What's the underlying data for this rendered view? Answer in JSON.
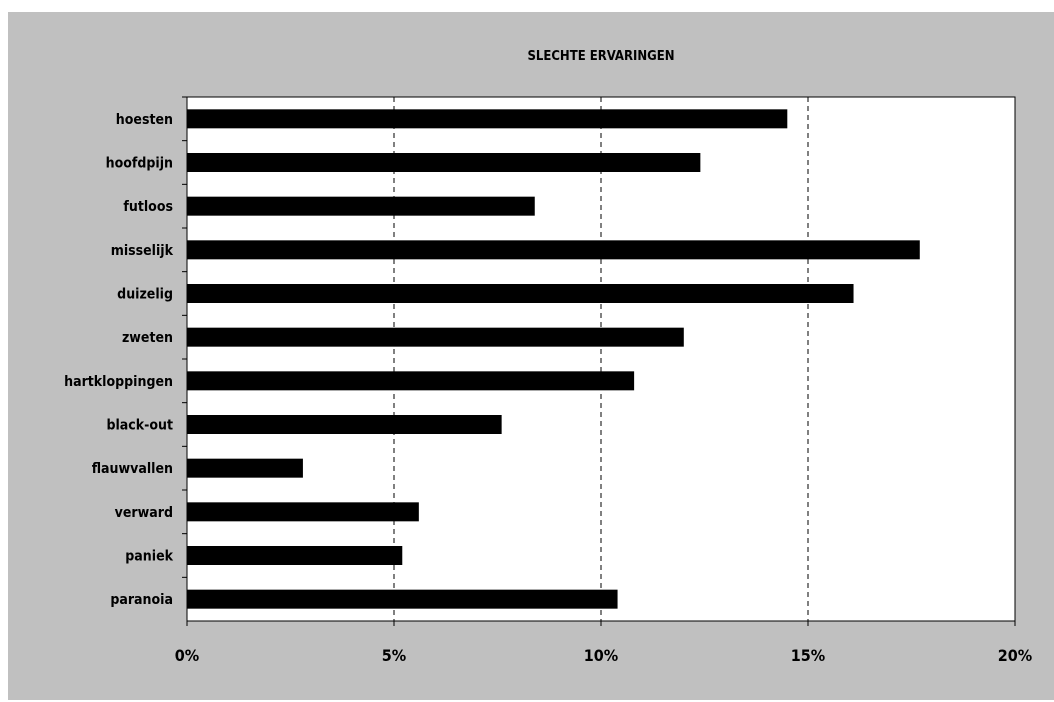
{
  "chart_data": {
    "type": "bar",
    "orientation": "horizontal",
    "title": "SLECHTE ERVARINGEN",
    "categories": [
      "hoesten",
      "hoofdpijn",
      "futloos",
      "misselijk",
      "duizelig",
      "zweten",
      "hartkloppingen",
      "black-out",
      "flauwvallen",
      "verward",
      "paniek",
      "paranoia"
    ],
    "values": [
      14.5,
      12.4,
      8.4,
      17.7,
      16.1,
      12.0,
      10.8,
      7.6,
      2.8,
      5.6,
      5.2,
      10.4
    ],
    "x_ticks": [
      "0%",
      "5%",
      "10%",
      "15%",
      "20%"
    ],
    "xlim": [
      0,
      20
    ],
    "unit": "%",
    "grid": "vertical dashed",
    "legend": "none",
    "colors": {
      "bar": "#000000",
      "plot_background": "#ffffff",
      "chart_background": "#c0c0c0"
    }
  }
}
